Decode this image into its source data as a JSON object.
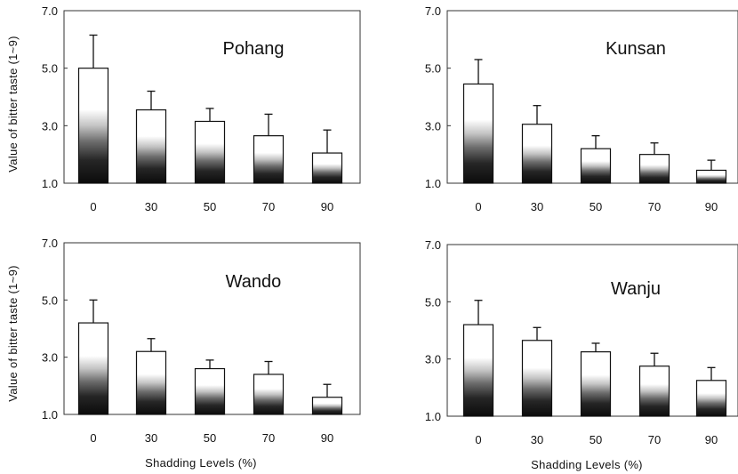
{
  "shared": {
    "ylabel": "Value of bitter taste (1~9)",
    "xlabel": "Shadding Levels (%)",
    "ytick_labels": [
      "7.0",
      "5.0",
      "3.0",
      "1.0"
    ]
  },
  "chart_data": [
    {
      "type": "bar",
      "title": "Pohang",
      "categories": [
        "0",
        "30",
        "50",
        "70",
        "90"
      ],
      "values": [
        5.0,
        3.55,
        3.15,
        2.65,
        2.05
      ],
      "error_upper": [
        1.15,
        0.65,
        0.45,
        0.75,
        0.8
      ],
      "ylim": [
        1,
        7
      ],
      "yticks": [
        1,
        3,
        5,
        7
      ],
      "xlabel": "",
      "ylabel": "Value of bitter taste (1~9)"
    },
    {
      "type": "bar",
      "title": "Kunsan",
      "categories": [
        "0",
        "30",
        "50",
        "70",
        "90"
      ],
      "values": [
        4.45,
        3.05,
        2.2,
        2.0,
        1.45
      ],
      "error_upper": [
        0.85,
        0.65,
        0.45,
        0.4,
        0.35
      ],
      "ylim": [
        1,
        7
      ],
      "yticks": [
        1,
        3,
        5,
        7
      ],
      "xlabel": "",
      "ylabel": ""
    },
    {
      "type": "bar",
      "title": "Wando",
      "categories": [
        "0",
        "30",
        "50",
        "70",
        "90"
      ],
      "values": [
        4.2,
        3.2,
        2.6,
        2.4,
        1.6
      ],
      "error_upper": [
        0.8,
        0.45,
        0.3,
        0.45,
        0.45
      ],
      "ylim": [
        1,
        7
      ],
      "yticks": [
        1,
        3,
        5,
        7
      ],
      "xlabel": "Shadding Levels (%)",
      "ylabel": "Value of bitter taste (1~9)"
    },
    {
      "type": "bar",
      "title": "Wanju",
      "categories": [
        "0",
        "30",
        "50",
        "70",
        "90"
      ],
      "values": [
        4.2,
        3.65,
        3.25,
        2.75,
        2.25
      ],
      "error_upper": [
        0.85,
        0.45,
        0.3,
        0.45,
        0.45
      ],
      "ylim": [
        1,
        7
      ],
      "yticks": [
        1,
        3,
        5,
        7
      ],
      "xlabel": "Shadding Levels (%)",
      "ylabel": ""
    }
  ]
}
